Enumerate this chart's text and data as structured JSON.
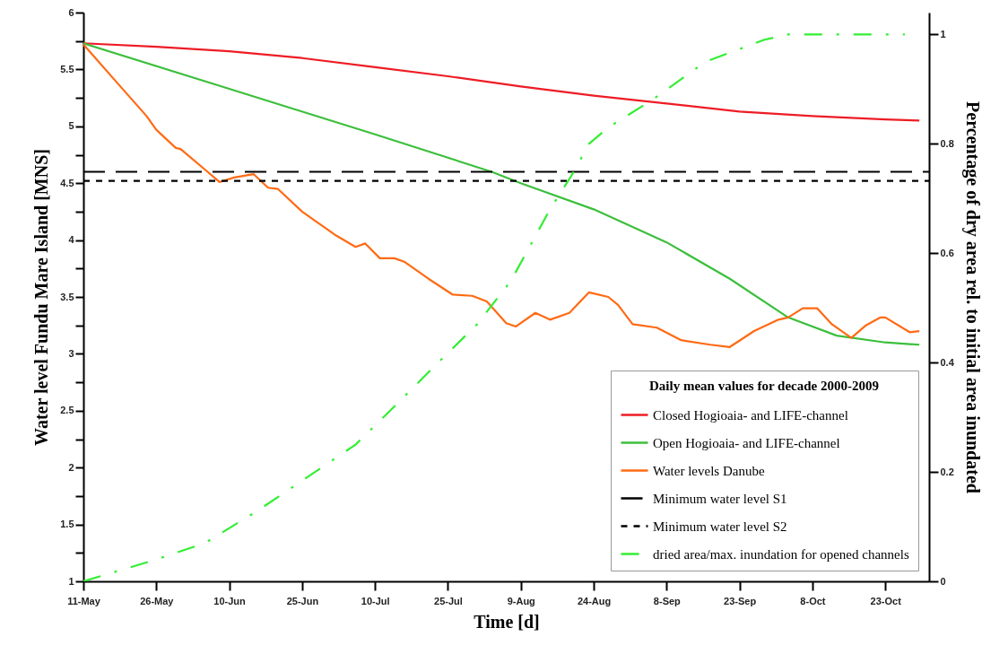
{
  "chart_data": {
    "type": "line",
    "xlabel": "Time  [d]",
    "ylabel": "Water level Fundu Mare Island [MNS]",
    "y2label": "Percentage of dry area rel. to initial area inundated",
    "legend_title": "Daily mean values for decade 2000-2009",
    "legend": "bottom right",
    "grid": false,
    "xlim": [
      "--05-11",
      "--11-01"
    ],
    "xticks": [
      {
        "value": "--05-11",
        "label": "11-May"
      },
      {
        "value": "--05-26",
        "label": "26-May"
      },
      {
        "value": "--06-10",
        "label": "10-Jun"
      },
      {
        "value": "--06-25",
        "label": "25-Jun"
      },
      {
        "value": "--07-10",
        "label": "10-Jul"
      },
      {
        "value": "--07-25",
        "label": "25-Jul"
      },
      {
        "value": "--08-09",
        "label": "9-Aug"
      },
      {
        "value": "--08-24",
        "label": "24-Aug"
      },
      {
        "value": "--09-08",
        "label": "8-Sep"
      },
      {
        "value": "--09-23",
        "label": "23-Sep"
      },
      {
        "value": "--10-08",
        "label": "8-Oct"
      },
      {
        "value": "--10-23",
        "label": "23-Oct"
      }
    ],
    "ylim": [
      1,
      6
    ],
    "yticks": [
      1,
      {
        "value": 1.25,
        "label": null
      },
      1.5,
      {
        "value": 1.75,
        "label": null
      },
      2,
      {
        "value": 2.25,
        "label": null
      },
      2.5,
      {
        "value": 2.75,
        "label": null
      },
      3,
      {
        "value": 3.25,
        "label": null
      },
      3.5,
      {
        "value": 3.75,
        "label": null
      },
      4,
      {
        "value": 4.25,
        "label": null
      },
      4.5,
      {
        "value": 4.75,
        "label": null
      },
      5,
      {
        "value": 5.25,
        "label": null
      },
      5.5,
      {
        "value": 5.75,
        "label": null
      },
      6
    ],
    "y2lim": [
      0,
      1.04
    ],
    "y2ticks": [
      0,
      0.2,
      0.4,
      0.6,
      0.8,
      1
    ],
    "series": [
      {
        "name": "Closed Hogioaia- and LIFE-channel",
        "color": "#ee1c25",
        "line_style": "solid",
        "x": [
          "--05-11",
          "--05-26",
          "--06-10",
          "--06-25",
          "--07-10",
          "--07-25",
          "--08-09",
          "--08-24",
          "--09-08",
          "--09-23",
          "--10-08",
          "--10-23",
          "--10-30"
        ],
        "values": [
          5.73,
          5.7,
          5.66,
          5.6,
          5.52,
          5.44,
          5.35,
          5.27,
          5.2,
          5.13,
          5.09,
          5.06,
          5.05
        ]
      },
      {
        "name": "Open Hogioaia- and LIFE-channel",
        "color": "#3cbf3c",
        "line_style": "solid",
        "x": [
          "--05-11",
          "--06-10",
          "--07-10",
          "--08-03",
          "--08-09",
          "--08-24",
          "--09-08",
          "--09-21",
          "--10-03",
          "--10-13",
          "--10-23",
          "--10-30"
        ],
        "values": [
          5.73,
          5.33,
          4.93,
          4.6,
          4.5,
          4.27,
          3.98,
          3.66,
          3.32,
          3.16,
          3.1,
          3.08
        ]
      },
      {
        "name": "Water levels Danube",
        "color": "#ff6a13",
        "line_style": "solid",
        "x": [
          "--05-11",
          "--05-18",
          "--05-24",
          "--05-26",
          "--05-30",
          "--05-31",
          "--06-05",
          "--06-08",
          "--06-11",
          "--06-15",
          "--06-18",
          "--06-20",
          "--06-25",
          "--06-28",
          "--07-02",
          "--07-06",
          "--07-08",
          "--07-11",
          "--07-14",
          "--07-16",
          "--07-21",
          "--07-26",
          "--07-30",
          "--08-02",
          "--08-06",
          "--08-08",
          "--08-12",
          "--08-15",
          "--08-19",
          "--08-23",
          "--08-27",
          "--08-29",
          "--09-01",
          "--09-06",
          "--09-11",
          "--09-17",
          "--09-21",
          "--09-26",
          "--10-01",
          "--10-03",
          "--10-06",
          "--10-09",
          "--10-12",
          "--10-16",
          "--10-19",
          "--10-22",
          "--10-23",
          "--10-28",
          "--10-30"
        ],
        "values": [
          5.72,
          5.38,
          5.09,
          4.97,
          4.81,
          4.8,
          4.62,
          4.51,
          4.55,
          4.58,
          4.46,
          4.45,
          4.25,
          4.16,
          4.04,
          3.94,
          3.97,
          3.84,
          3.84,
          3.81,
          3.66,
          3.52,
          3.51,
          3.46,
          3.27,
          3.24,
          3.36,
          3.3,
          3.36,
          3.54,
          3.5,
          3.43,
          3.26,
          3.23,
          3.12,
          3.08,
          3.06,
          3.2,
          3.3,
          3.32,
          3.4,
          3.4,
          3.26,
          3.14,
          3.25,
          3.32,
          3.32,
          3.19,
          3.2
        ]
      },
      {
        "name": "Minimum water level S1",
        "color": "#000000",
        "line_style": "dashed",
        "x": [
          "--05-11",
          "--11-01"
        ],
        "values": [
          4.6,
          4.6
        ]
      },
      {
        "name": "Minimum water level S2",
        "color": "#000000",
        "line_style": "dotted",
        "x": [
          "--05-11",
          "--11-01"
        ],
        "values": [
          4.52,
          4.52
        ]
      },
      {
        "name": "dried area/max. inundation for opened channels",
        "color": "#33ee33",
        "line_style": "dashdot",
        "axis": "y2",
        "x": [
          "--05-11",
          "--05-26",
          "--06-05",
          "--06-16",
          "--06-26",
          "--07-06",
          "--07-14",
          "--07-23",
          "--07-31",
          "--08-07",
          "--08-15",
          "--08-20",
          "--08-23",
          "--08-27",
          "--09-05",
          "--09-16",
          "--09-28",
          "--10-03",
          "--10-27"
        ],
        "values": [
          0,
          0.04,
          0.07,
          0.13,
          0.19,
          0.25,
          0.32,
          0.4,
          0.47,
          0.55,
          0.68,
          0.75,
          0.8,
          0.83,
          0.88,
          0.95,
          0.99,
          1.0,
          1.0
        ]
      }
    ]
  }
}
